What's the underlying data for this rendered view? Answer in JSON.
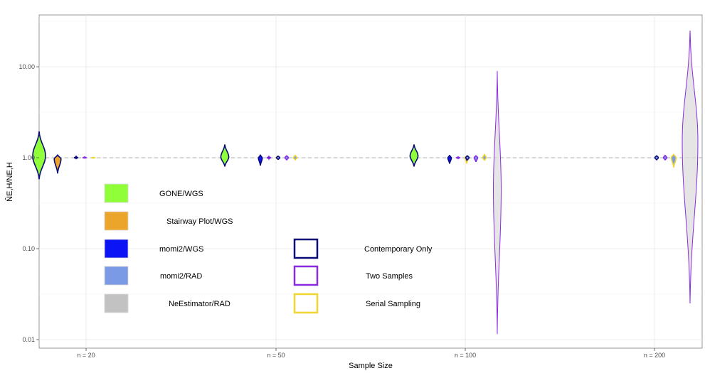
{
  "chart_data": {
    "type": "violin",
    "title": "",
    "xlabel": "Sample Size",
    "ylabel": "N̂E,H/NE,H",
    "y_scale": "log10",
    "ylim": [
      0.008,
      30
    ],
    "y_ticks": [
      0.01,
      0.1,
      1,
      10
    ],
    "y_tick_labels": [
      "0.01",
      "0.10",
      "1.00",
      "10.00"
    ],
    "reference_line": 1,
    "grid": true,
    "categories": [
      "n = 20",
      "n = 50",
      "n = 100",
      "n = 200"
    ],
    "method_colors": {
      "GONE/WGS": "#90ff3a",
      "Stairway Plot/WGS": "#eba52a",
      "momi2/WGS": "#0a14f5",
      "momi2/RAD": "#7b9ae6",
      "NeEstimator/RAD": "#c2c2c2"
    },
    "sampling_colors": {
      "Contemporary Only": "#0a0a78",
      "Two Samples": "#8a2be2",
      "Serial Sampling": "#f0d630"
    },
    "legend_methods": [
      {
        "label": "GONE/WGS",
        "color": "#90ff3a"
      },
      {
        "label": "Stairway Plot/WGS",
        "color": "#eba52a"
      },
      {
        "label": "momi2/WGS",
        "color": "#0a14f5"
      },
      {
        "label": "momi2/RAD",
        "color": "#7b9ae6"
      },
      {
        "label": "NeEstimator/RAD",
        "color": "#c2c2c2"
      }
    ],
    "legend_sampling": [
      {
        "label": "Contemporary Only",
        "color": "#0a0a78"
      },
      {
        "label": "Two Samples",
        "color": "#8a2be2"
      },
      {
        "label": "Serial Sampling",
        "color": "#f0d630"
      }
    ],
    "series": [
      {
        "category": "n = 20",
        "method": "GONE/WGS",
        "sampling": "Contemporary Only",
        "min": 0.58,
        "max": 1.95,
        "median": 1.05
      },
      {
        "category": "n = 20",
        "method": "Stairway Plot/WGS",
        "sampling": "Contemporary Only",
        "min": 0.67,
        "max": 1.08,
        "median": 0.97
      },
      {
        "category": "n = 20",
        "method": "momi2/WGS",
        "sampling": "Contemporary Only",
        "min": 0.98,
        "max": 1.03,
        "median": 1.0
      },
      {
        "category": "n = 20",
        "method": "momi2/WGS",
        "sampling": "Two Samples",
        "min": 0.99,
        "max": 1.02,
        "median": 1.0
      },
      {
        "category": "n = 20",
        "method": "momi2/WGS",
        "sampling": "Serial Sampling",
        "min": 0.99,
        "max": 1.01,
        "median": 1.0
      },
      {
        "category": "n = 50",
        "method": "GONE/WGS",
        "sampling": "Contemporary Only",
        "min": 0.8,
        "max": 1.4,
        "median": 1.02
      },
      {
        "category": "n = 50",
        "method": "momi2/WGS",
        "sampling": "Contemporary Only",
        "min": 0.82,
        "max": 1.08,
        "median": 0.99
      },
      {
        "category": "n = 50",
        "method": "momi2/WGS",
        "sampling": "Two Samples",
        "min": 0.97,
        "max": 1.03,
        "median": 1.0
      },
      {
        "category": "n = 50",
        "method": "momi2/WGS",
        "sampling": "Serial Sampling",
        "min": 0.98,
        "max": 1.03,
        "median": 1.0
      },
      {
        "category": "n = 50",
        "method": "momi2/RAD",
        "sampling": "Contemporary Only",
        "min": 0.95,
        "max": 1.05,
        "median": 1.0
      },
      {
        "category": "n = 50",
        "method": "momi2/RAD",
        "sampling": "Two Samples",
        "min": 0.94,
        "max": 1.06,
        "median": 1.0
      },
      {
        "category": "n = 50",
        "method": "momi2/RAD",
        "sampling": "Serial Sampling",
        "min": 0.94,
        "max": 1.07,
        "median": 1.0
      },
      {
        "category": "n = 100",
        "method": "GONE/WGS",
        "sampling": "Contemporary Only",
        "min": 0.8,
        "max": 1.4,
        "median": 1.05
      },
      {
        "category": "n = 100",
        "method": "momi2/WGS",
        "sampling": "Contemporary Only",
        "min": 0.86,
        "max": 1.07,
        "median": 0.99
      },
      {
        "category": "n = 100",
        "method": "momi2/WGS",
        "sampling": "Two Samples",
        "min": 0.98,
        "max": 1.02,
        "median": 1.0
      },
      {
        "category": "n = 100",
        "method": "momi2/WGS",
        "sampling": "Serial Sampling",
        "min": 0.86,
        "max": 1.06,
        "median": 1.0
      },
      {
        "category": "n = 100",
        "method": "momi2/RAD",
        "sampling": "Contemporary Only",
        "min": 0.94,
        "max": 1.06,
        "median": 1.0
      },
      {
        "category": "n = 100",
        "method": "momi2/RAD",
        "sampling": "Two Samples",
        "min": 0.9,
        "max": 1.06,
        "median": 1.0
      },
      {
        "category": "n = 100",
        "method": "momi2/RAD",
        "sampling": "Serial Sampling",
        "min": 0.93,
        "max": 1.1,
        "median": 1.0
      },
      {
        "category": "n = 100",
        "method": "NeEstimator/RAD",
        "sampling": "Two Samples",
        "min": 0.0115,
        "max": 9.0,
        "median": 0.45
      },
      {
        "category": "n = 200",
        "method": "momi2/RAD",
        "sampling": "Contemporary Only",
        "min": 0.94,
        "max": 1.06,
        "median": 1.0
      },
      {
        "category": "n = 200",
        "method": "momi2/RAD",
        "sampling": "Two Samples",
        "min": 0.94,
        "max": 1.07,
        "median": 1.0
      },
      {
        "category": "n = 200",
        "method": "momi2/RAD",
        "sampling": "Serial Sampling",
        "min": 0.78,
        "max": 1.1,
        "median": 1.0
      },
      {
        "category": "n = 200",
        "method": "NeEstimator/RAD",
        "sampling": "Two Samples",
        "min": 0.025,
        "max": 25.0,
        "median": 1.5
      }
    ]
  }
}
